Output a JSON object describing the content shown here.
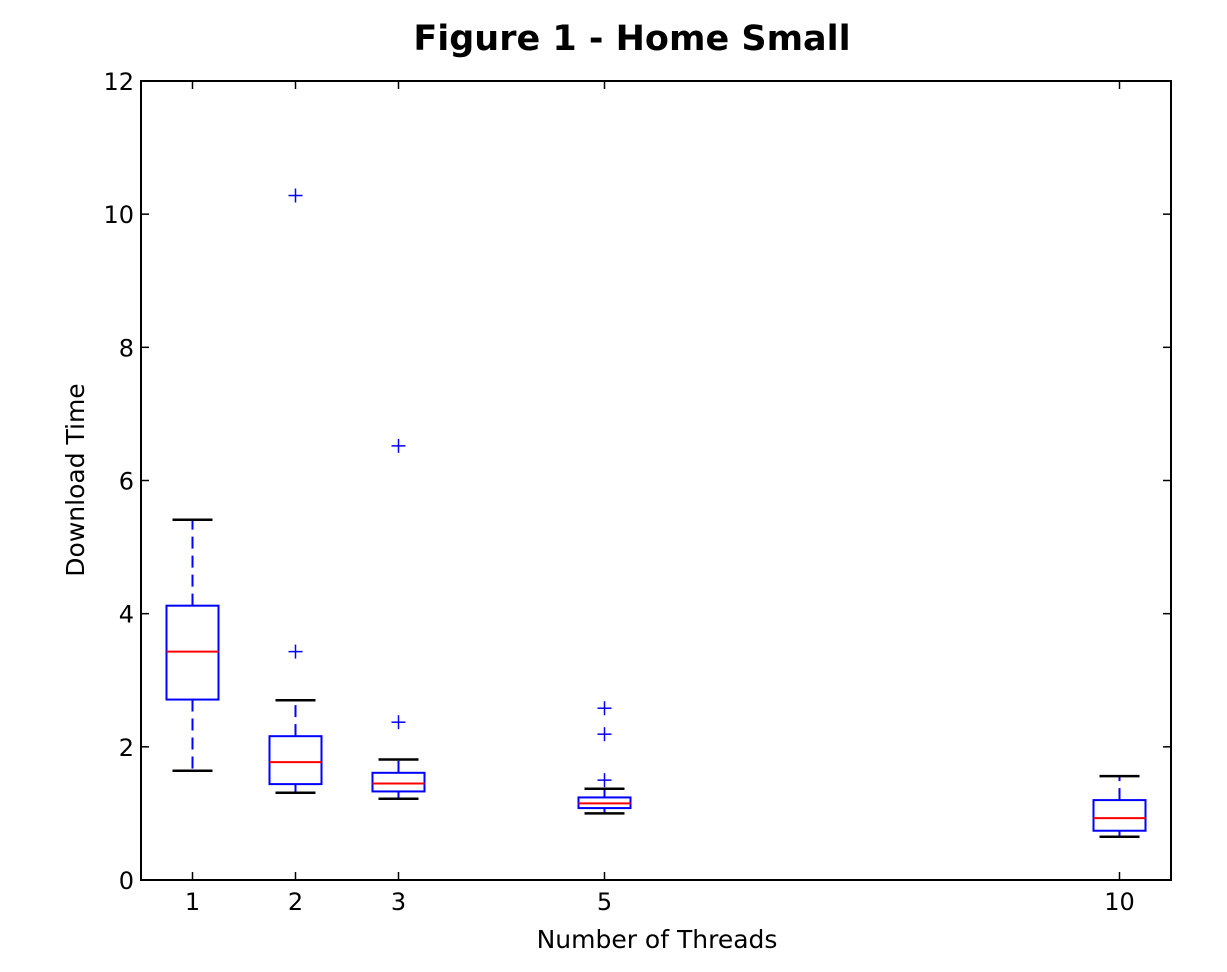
{
  "chart_data": {
    "type": "box",
    "title": "Figure 1 - Home Small",
    "xlabel": "Number of Threads",
    "ylabel": "Download Time",
    "x_range": [
      0.5,
      10.5
    ],
    "ylim": [
      0,
      12
    ],
    "x_ticks": [
      1,
      2,
      3,
      5,
      10
    ],
    "x_tick_labels": [
      "1",
      "2",
      "3",
      "5",
      "10"
    ],
    "y_ticks": [
      0,
      2,
      4,
      6,
      8,
      10,
      12
    ],
    "y_tick_labels": [
      "0",
      "2",
      "4",
      "6",
      "8",
      "10",
      "12"
    ],
    "grid": false,
    "series": [
      {
        "x": 1,
        "whisker_low": 1.64,
        "q1": 2.71,
        "median": 3.43,
        "q3": 4.12,
        "whisker_high": 5.41,
        "outliers": []
      },
      {
        "x": 2,
        "whisker_low": 1.31,
        "q1": 1.44,
        "median": 1.77,
        "q3": 2.16,
        "whisker_high": 2.7,
        "outliers": [
          3.43,
          10.28
        ]
      },
      {
        "x": 3,
        "whisker_low": 1.22,
        "q1": 1.33,
        "median": 1.45,
        "q3": 1.61,
        "whisker_high": 1.81,
        "outliers": [
          2.37,
          6.52
        ]
      },
      {
        "x": 5,
        "whisker_low": 1.0,
        "q1": 1.08,
        "median": 1.15,
        "q3": 1.24,
        "whisker_high": 1.37,
        "outliers": [
          1.5,
          2.19,
          2.58
        ]
      },
      {
        "x": 10,
        "whisker_low": 0.65,
        "q1": 0.74,
        "median": 0.93,
        "q3": 1.2,
        "whisker_high": 1.56,
        "outliers": []
      }
    ],
    "colors": {
      "box": "#0000ff",
      "median": "#ff0000",
      "whisker": "#0000ff",
      "cap": "#000000",
      "outlier": "#0000ff",
      "axes": "#000000"
    }
  }
}
